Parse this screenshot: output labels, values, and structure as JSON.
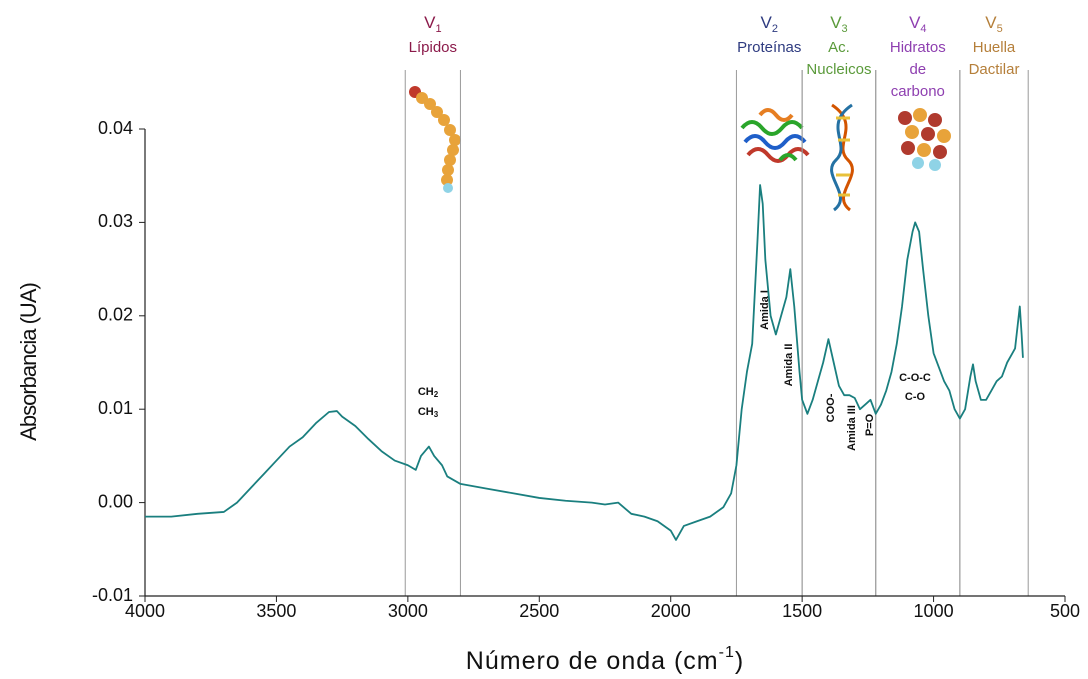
{
  "chart_data": {
    "type": "line",
    "x_label": "Número de onda (cm",
    "x_label_sup": "-1",
    "x_label_end": ")",
    "y_label": "Absorbancia (UA)",
    "color": "#1a7f7f",
    "xlim": [
      4000,
      500
    ],
    "xticks": [
      4000,
      3500,
      3000,
      2500,
      2000,
      1500,
      1000,
      500
    ],
    "ylim": [
      -0.01,
      0.04
    ],
    "yticks": [
      -0.01,
      {
        "value": 0,
        "label": "0.00"
      },
      0.01,
      0.02,
      0.03,
      0.04
    ],
    "x": [
      4000,
      3900,
      3800,
      3700,
      3650,
      3600,
      3550,
      3500,
      3450,
      3400,
      3350,
      3300,
      3270,
      3250,
      3200,
      3150,
      3100,
      3050,
      3000,
      2970,
      2950,
      2920,
      2900,
      2870,
      2850,
      2800,
      2700,
      2600,
      2500,
      2400,
      2300,
      2250,
      2200,
      2150,
      2100,
      2050,
      2000,
      1980,
      1950,
      1900,
      1850,
      1800,
      1770,
      1750,
      1730,
      1710,
      1690,
      1670,
      1660,
      1650,
      1640,
      1620,
      1600,
      1580,
      1560,
      1545,
      1530,
      1510,
      1500,
      1480,
      1460,
      1440,
      1420,
      1400,
      1380,
      1360,
      1340,
      1320,
      1300,
      1280,
      1260,
      1240,
      1220,
      1200,
      1180,
      1160,
      1140,
      1120,
      1100,
      1080,
      1070,
      1055,
      1040,
      1020,
      1000,
      980,
      960,
      940,
      920,
      900,
      880,
      860,
      850,
      840,
      820,
      800,
      780,
      760,
      740,
      720,
      700,
      690,
      680,
      672,
      665,
      660
    ],
    "values": [
      -0.0015,
      -0.0015,
      -0.0012,
      -0.001,
      0.0,
      0.0015,
      0.003,
      0.0045,
      0.006,
      0.007,
      0.0085,
      0.0097,
      0.0098,
      0.0092,
      0.0082,
      0.0068,
      0.0055,
      0.0045,
      0.004,
      0.0035,
      0.005,
      0.006,
      0.005,
      0.004,
      0.0028,
      0.002,
      0.0015,
      0.001,
      0.0005,
      0.0002,
      0.0,
      -0.0002,
      0.0,
      -0.0012,
      -0.0015,
      -0.002,
      -0.003,
      -0.004,
      -0.0025,
      -0.002,
      -0.0015,
      -0.0005,
      0.001,
      0.004,
      0.01,
      0.014,
      0.017,
      0.028,
      0.034,
      0.032,
      0.026,
      0.02,
      0.018,
      0.02,
      0.022,
      0.025,
      0.021,
      0.014,
      0.011,
      0.0095,
      0.011,
      0.013,
      0.015,
      0.0175,
      0.015,
      0.0125,
      0.0115,
      0.0115,
      0.0112,
      0.01,
      0.0105,
      0.011,
      0.0095,
      0.0105,
      0.012,
      0.014,
      0.017,
      0.021,
      0.026,
      0.029,
      0.03,
      0.029,
      0.025,
      0.02,
      0.016,
      0.0145,
      0.013,
      0.012,
      0.01,
      0.009,
      0.01,
      0.0135,
      0.0148,
      0.013,
      0.011,
      0.011,
      0.012,
      0.013,
      0.0135,
      0.015,
      0.016,
      0.0165,
      0.019,
      0.021,
      0.018,
      0.0155
    ],
    "regions": [
      {
        "symbol": "V",
        "index": "1",
        "lines": [
          "Lípidos"
        ],
        "color": "#8b1a4a",
        "start": 3010,
        "end": 2800
      },
      {
        "symbol": "V",
        "index": "2",
        "lines": [
          "Proteínas"
        ],
        "color": "#2e3b80",
        "start": 1750,
        "end": 1500
      },
      {
        "symbol": "V",
        "index": "3",
        "lines": [
          "Ac.",
          "Nucleicos"
        ],
        "color": "#5a9a3a",
        "start": 1500,
        "end": 1220
      },
      {
        "symbol": "V",
        "index": "4",
        "lines": [
          "Hidratos",
          "de",
          "carbono"
        ],
        "color": "#8e3fb0",
        "start": 1220,
        "end": 900
      },
      {
        "symbol": "V",
        "index": "5",
        "lines": [
          "Huella",
          "Dactilar"
        ],
        "color": "#b57f3a",
        "start": 900,
        "end": 640
      }
    ],
    "annotations": [
      {
        "text": "CH",
        "sub": "2"
      },
      {
        "text": "CH",
        "sub": "3"
      },
      {
        "text": "Amida I"
      },
      {
        "text": "Amida II"
      },
      {
        "text": "COO-"
      },
      {
        "text": "Amida III"
      },
      {
        "text": "P=O"
      },
      {
        "text": "C-O-C"
      },
      {
        "text": "C-O"
      }
    ]
  }
}
